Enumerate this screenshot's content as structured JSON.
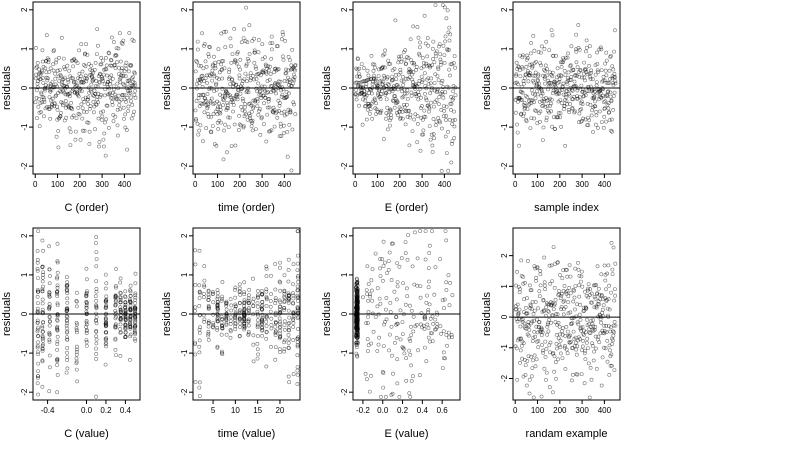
{
  "figure": {
    "ylabel": "residuals"
  },
  "chart_data": [
    {
      "type": "scatter",
      "panel": "C-order",
      "xlabel": "C (order)",
      "ylabel": "residuals",
      "xlim": [
        -10,
        470
      ],
      "ylim": [
        -2.2,
        2.2
      ],
      "xticks": [
        0,
        100,
        200,
        300,
        400
      ],
      "yticks": [
        -2,
        -1,
        0,
        1,
        2
      ],
      "reference_line": 0,
      "n_points": 450,
      "pattern": "index",
      "spread": [
        0.55,
        0.55
      ]
    },
    {
      "type": "scatter",
      "panel": "time-order",
      "xlabel": "time (order)",
      "ylabel": "residuals",
      "xlim": [
        -10,
        470
      ],
      "ylim": [
        -2.2,
        2.2
      ],
      "xticks": [
        0,
        100,
        200,
        300,
        400
      ],
      "yticks": [
        -2,
        -1,
        0,
        1,
        2
      ],
      "reference_line": 0,
      "n_points": 450,
      "pattern": "index",
      "spread": [
        0.6,
        0.7
      ]
    },
    {
      "type": "scatter",
      "panel": "E-order",
      "xlabel": "E (order)",
      "ylabel": "residuals",
      "xlim": [
        -10,
        470
      ],
      "ylim": [
        -2.2,
        2.2
      ],
      "xticks": [
        0,
        100,
        200,
        300,
        400
      ],
      "yticks": [
        -2,
        -1,
        0,
        1,
        2
      ],
      "reference_line": 0,
      "n_points": 450,
      "pattern": "index",
      "spread": [
        0.3,
        1.0
      ]
    },
    {
      "type": "scatter",
      "panel": "sample-index",
      "xlabel": "sample index",
      "ylabel": "residuals",
      "xlim": [
        -10,
        470
      ],
      "ylim": [
        -2.2,
        2.2
      ],
      "xticks": [
        0,
        100,
        200,
        300,
        400
      ],
      "yticks": [
        -2,
        -1,
        0,
        1,
        2
      ],
      "reference_line": 0,
      "n_points": 450,
      "pattern": "index",
      "spread": [
        0.55,
        0.55
      ]
    },
    {
      "type": "scatter",
      "panel": "C-value",
      "xlabel": "C (value)",
      "ylabel": "residuals",
      "xlim": [
        -0.55,
        0.55
      ],
      "ylim": [
        -2.2,
        2.2
      ],
      "xticks": [
        -0.4,
        0.0,
        0.2,
        0.4
      ],
      "xtick_labels": [
        "-0.4",
        "0.0",
        "0.2",
        "0.4"
      ],
      "yticks": [
        -2,
        -1,
        0,
        1,
        2
      ],
      "reference_line": 0,
      "n_points": 450,
      "pattern": "columns",
      "columns": [
        -0.5,
        -0.45,
        -0.38,
        -0.3,
        -0.2,
        -0.1,
        0.0,
        0.1,
        0.2,
        0.3,
        0.35,
        0.4,
        0.45,
        0.5
      ],
      "column_weights": [
        4,
        4,
        3,
        4,
        4,
        2,
        3,
        3,
        4,
        3,
        3,
        4,
        4,
        4
      ],
      "column_spread": [
        1.1,
        1.0,
        0.8,
        1.0,
        0.7,
        0.9,
        0.5,
        0.8,
        0.45,
        0.4,
        0.4,
        0.35,
        0.35,
        0.35
      ]
    },
    {
      "type": "scatter",
      "panel": "time-value",
      "xlabel": "time (value)",
      "ylabel": "residuals",
      "xlim": [
        0.5,
        24.5
      ],
      "ylim": [
        -2.2,
        2.2
      ],
      "xticks": [
        5,
        10,
        15,
        20
      ],
      "yticks": [
        -2,
        -1,
        0,
        1,
        2
      ],
      "reference_line": 0,
      "n_points": 450,
      "pattern": "columns",
      "columns": [
        1,
        2,
        3,
        4,
        5,
        6,
        7,
        8,
        9,
        10,
        11,
        12,
        13,
        14,
        15,
        16,
        17,
        18,
        19,
        20,
        21,
        22,
        23,
        24
      ],
      "column_weights": [
        1,
        2,
        1,
        2,
        1,
        3,
        2,
        2,
        1,
        2,
        2,
        4,
        2,
        1,
        2,
        3,
        2,
        1,
        2,
        3,
        2,
        3,
        2,
        4
      ],
      "column_spread": [
        1.2,
        0.8,
        0.6,
        0.5,
        0.4,
        0.4,
        0.4,
        0.35,
        0.35,
        0.35,
        0.35,
        0.3,
        0.4,
        0.4,
        0.4,
        0.35,
        0.5,
        0.5,
        0.5,
        0.6,
        0.6,
        0.7,
        0.8,
        0.9
      ]
    },
    {
      "type": "scatter",
      "panel": "E-value",
      "xlabel": "E (value)",
      "ylabel": "residuals",
      "xlim": [
        -0.3,
        0.78
      ],
      "ylim": [
        -2.2,
        2.2
      ],
      "xticks": [
        -0.2,
        0.0,
        0.2,
        0.4,
        0.6
      ],
      "xtick_labels": [
        "-0.2",
        "0.0",
        "0.2",
        "0.4",
        "0.6"
      ],
      "yticks": [
        -2,
        -1,
        0,
        1,
        2
      ],
      "reference_line": 0,
      "n_points": 450,
      "pattern": "clustered",
      "cluster_x": -0.26,
      "cluster_fraction": 0.55,
      "cluster_spread": 0.4,
      "tail_range": [
        -0.2,
        0.72
      ],
      "tail_spread": 1.05
    },
    {
      "type": "scatter",
      "panel": "random-example",
      "xlabel": "randam example",
      "ylabel": "residuals",
      "xlim": [
        -10,
        470
      ],
      "ylim": [
        -2.7,
        2.9
      ],
      "xticks": [
        0,
        100,
        200,
        300,
        400
      ],
      "yticks": [
        -2,
        -1,
        0,
        1,
        2
      ],
      "reference_line": 0,
      "n_points": 450,
      "pattern": "index",
      "spread": [
        1.0,
        1.0
      ]
    }
  ]
}
